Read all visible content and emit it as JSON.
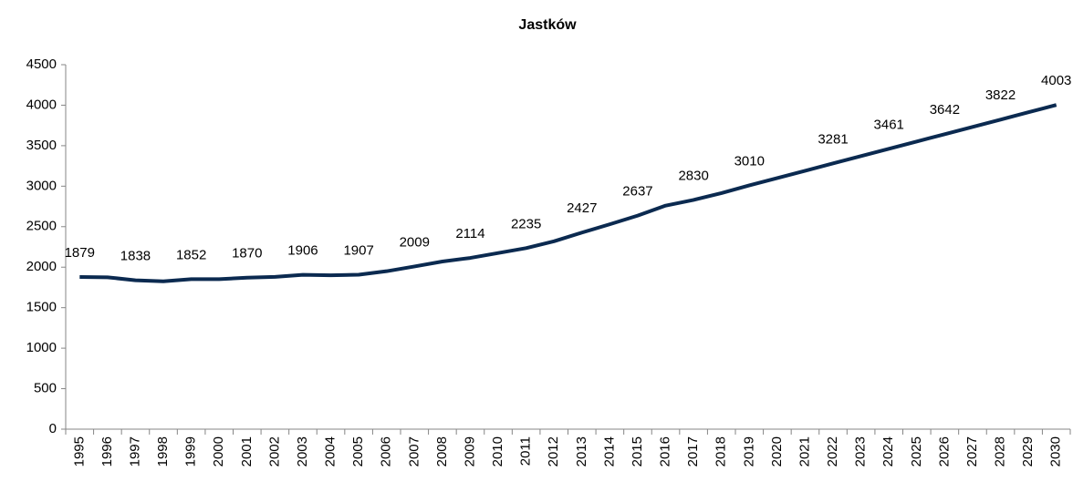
{
  "chart_data": {
    "type": "line",
    "title": "Jastków",
    "categories": [
      "1995",
      "1996",
      "1997",
      "1998",
      "1999",
      "2000",
      "2001",
      "2002",
      "2003",
      "2004",
      "2005",
      "2006",
      "2007",
      "2008",
      "2009",
      "2010",
      "2011",
      "2012",
      "2013",
      "2014",
      "2015",
      "2016",
      "2017",
      "2018",
      "2019",
      "2020",
      "2021",
      "2022",
      "2023",
      "2024",
      "2025",
      "2026",
      "2027",
      "2028",
      "2029",
      "2030"
    ],
    "series": [
      {
        "name": "Jastków",
        "color": "#0b2a50",
        "values": [
          1879,
          1875,
          1838,
          1825,
          1852,
          1852,
          1870,
          1880,
          1906,
          1900,
          1907,
          1950,
          2009,
          2070,
          2114,
          2175,
          2235,
          2320,
          2427,
          2530,
          2637,
          2760,
          2830,
          2915,
          3010,
          3100,
          3190,
          3281,
          3371,
          3461,
          3552,
          3642,
          3732,
          3822,
          3913,
          4003
        ],
        "value_labels": [
          "1879",
          null,
          "1838",
          null,
          "1852",
          null,
          "1870",
          null,
          "1906",
          null,
          "1907",
          null,
          "2009",
          null,
          "2114",
          null,
          "2235",
          null,
          "2427",
          null,
          "2637",
          null,
          "2830",
          null,
          "3010",
          null,
          null,
          "3281",
          null,
          "3461",
          null,
          "3642",
          null,
          "3822",
          null,
          "4003"
        ]
      }
    ],
    "ylim": [
      0,
      4500
    ],
    "yticks": [
      0,
      500,
      1000,
      1500,
      2000,
      2500,
      3000,
      3500,
      4000,
      4500
    ],
    "grid": false
  }
}
